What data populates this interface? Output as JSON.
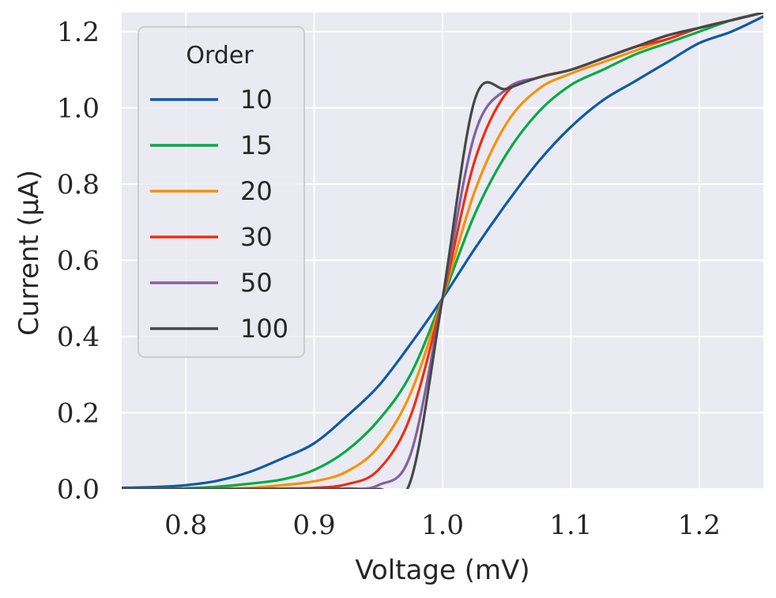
{
  "chart_data": {
    "type": "line",
    "title": "",
    "xlabel": "Voltage (mV)",
    "ylabel": "Current (μA)",
    "xlim": [
      0.75,
      1.25
    ],
    "ylim": [
      0.0,
      1.25
    ],
    "xticks": [
      0.8,
      0.9,
      1.0,
      1.1,
      1.2
    ],
    "xtick_labels": [
      "0.8",
      "0.9",
      "1.0",
      "1.1",
      "1.2"
    ],
    "yticks": [
      0.0,
      0.2,
      0.4,
      0.6,
      0.8,
      1.0,
      1.2
    ],
    "ytick_labels": [
      "0.0",
      "0.2",
      "0.4",
      "0.6",
      "0.8",
      "1.0",
      "1.2"
    ],
    "grid": true,
    "background": "#eaeaf2",
    "legend": {
      "title": "Order",
      "placement": "upper-left"
    },
    "x": [
      0.75,
      0.775,
      0.8,
      0.825,
      0.85,
      0.875,
      0.9,
      0.925,
      0.95,
      0.975,
      1.0,
      1.025,
      1.05,
      1.075,
      1.1,
      1.125,
      1.15,
      1.175,
      1.2,
      1.225,
      1.25
    ],
    "series": [
      {
        "name": "10",
        "color": "#0b5aa3",
        "values": [
          0.003,
          0.005,
          0.01,
          0.022,
          0.045,
          0.08,
          0.12,
          0.19,
          0.27,
          0.38,
          0.5,
          0.63,
          0.75,
          0.86,
          0.95,
          1.02,
          1.07,
          1.12,
          1.17,
          1.2,
          1.24
        ]
      },
      {
        "name": "15",
        "color": "#00aa44",
        "values": [
          0.0,
          0.001,
          0.002,
          0.006,
          0.014,
          0.025,
          0.05,
          0.1,
          0.18,
          0.3,
          0.5,
          0.72,
          0.88,
          0.99,
          1.06,
          1.1,
          1.14,
          1.17,
          1.2,
          1.23,
          1.25
        ]
      },
      {
        "name": "20",
        "color": "#f39200",
        "values": [
          0.0,
          0.0,
          0.0,
          0.001,
          0.003,
          0.01,
          0.02,
          0.045,
          0.11,
          0.25,
          0.5,
          0.78,
          0.96,
          1.05,
          1.09,
          1.12,
          1.15,
          1.18,
          1.21,
          1.23,
          1.25
        ]
      },
      {
        "name": "30",
        "color": "#ee2e10",
        "values": [
          0.0,
          0.0,
          0.0,
          0.0,
          0.0,
          0.001,
          0.003,
          0.012,
          0.05,
          0.19,
          0.5,
          0.86,
          1.04,
          1.08,
          1.1,
          1.13,
          1.16,
          1.18,
          1.21,
          1.23,
          1.25
        ]
      },
      {
        "name": "50",
        "color": "#85609e",
        "values": [
          0.0,
          0.0,
          0.0,
          0.0,
          0.0,
          0.0,
          0.0,
          0.001,
          0.01,
          0.09,
          0.5,
          0.93,
          1.05,
          1.08,
          1.1,
          1.13,
          1.16,
          1.19,
          1.21,
          1.23,
          1.25
        ]
      },
      {
        "name": "100",
        "color": "#474747",
        "values": [
          0.0,
          0.0,
          0.0,
          0.0,
          0.0,
          0.0,
          0.0,
          0.0,
          0.0,
          0.02,
          0.5,
          1.02,
          1.05,
          1.08,
          1.1,
          1.13,
          1.16,
          1.19,
          1.21,
          1.23,
          1.25
        ]
      }
    ]
  }
}
